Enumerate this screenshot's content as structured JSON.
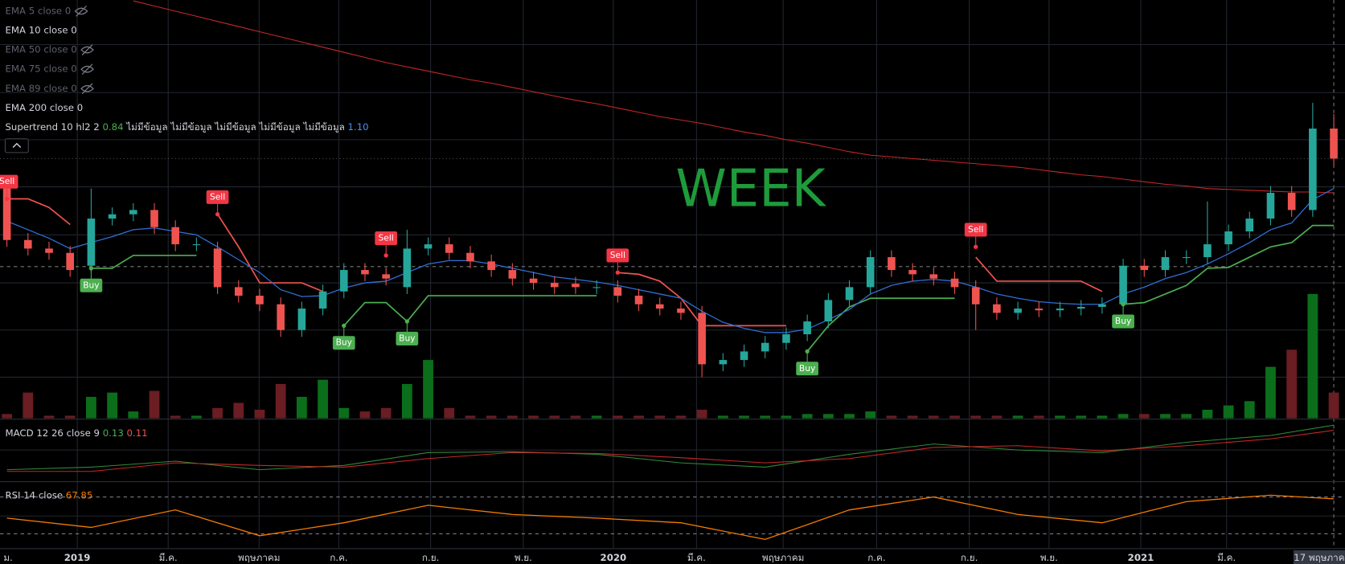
{
  "legend": {
    "ema": [
      {
        "text": "EMA 5 close 0",
        "hidden": true
      },
      {
        "text": "EMA 10 close 0",
        "hidden": false
      },
      {
        "text": "EMA 50 close 0",
        "hidden": true
      },
      {
        "text": "EMA 75 close 0",
        "hidden": true
      },
      {
        "text": "EMA 89 close 0",
        "hidden": true
      },
      {
        "text": "EMA 200 close 0",
        "hidden": false
      }
    ],
    "supertrend": {
      "name": "Supertrend 10 hl2 2",
      "values": [
        "0.84",
        "ไม่มีข้อมูล",
        "ไม่มีข้อมูล",
        "ไม่มีข้อมูล",
        "ไม่มีข้อมูล",
        "ไม่มีข้อมูล",
        "1.10"
      ]
    },
    "macd": {
      "name": "MACD 12 26 close 9",
      "values": [
        "0.13",
        "0.11"
      ]
    },
    "rsi": {
      "name": "RSI 14 close",
      "values": [
        "67.85"
      ]
    }
  },
  "watermark": "WEEK",
  "price_chart": {
    "ylim": [
      0,
      488
    ],
    "volume_ylim": [
      0,
      488
    ],
    "up_color": "#26a69a",
    "down_color": "#ef5350",
    "volume_up_color": "#0b6e1a",
    "volume_down_color": "#6a1d22",
    "candles": {
      "open": [
        273,
        208,
        198,
        193,
        178,
        233,
        238,
        243,
        223,
        203,
        198,
        153,
        143,
        133,
        103,
        128,
        148,
        173,
        168,
        153,
        198,
        203,
        193,
        183,
        173,
        163,
        158,
        157,
        153,
        153,
        143,
        133,
        128,
        123,
        63,
        68,
        78,
        88,
        98,
        113,
        138,
        153,
        188,
        173,
        168,
        163,
        153,
        133,
        123,
        128,
        126,
        128,
        130,
        133,
        178,
        173,
        188,
        188,
        203,
        218,
        233,
        263,
        243,
        338
      ],
      "high": [
        281,
        216,
        206,
        201,
        268,
        246,
        251,
        251,
        231,
        211,
        206,
        161,
        151,
        141,
        136,
        156,
        181,
        181,
        176,
        220,
        211,
        211,
        201,
        191,
        181,
        171,
        166,
        165,
        161,
        161,
        151,
        141,
        136,
        131,
        76,
        86,
        96,
        106,
        121,
        146,
        161,
        196,
        196,
        181,
        176,
        171,
        161,
        141,
        136,
        136,
        136,
        138,
        141,
        186,
        186,
        196,
        196,
        253,
        226,
        241,
        271,
        271,
        368,
        355
      ],
      "low": [
        200,
        190,
        185,
        165,
        170,
        225,
        230,
        215,
        195,
        195,
        145,
        135,
        125,
        95,
        95,
        120,
        140,
        160,
        155,
        145,
        190,
        185,
        175,
        165,
        155,
        150,
        145,
        145,
        145,
        135,
        125,
        120,
        115,
        48,
        55,
        60,
        70,
        80,
        90,
        105,
        130,
        145,
        165,
        160,
        155,
        145,
        103,
        115,
        115,
        118,
        118,
        120,
        122,
        125,
        165,
        165,
        180,
        180,
        195,
        210,
        225,
        235,
        235,
        295
      ],
      "close": [
        208,
        198,
        193,
        173,
        233,
        238,
        243,
        223,
        203,
        203,
        153,
        143,
        133,
        103,
        128,
        148,
        173,
        168,
        163,
        198,
        203,
        193,
        183,
        173,
        163,
        158,
        153,
        153,
        153,
        143,
        133,
        128,
        123,
        63,
        68,
        78,
        88,
        98,
        113,
        138,
        153,
        188,
        173,
        168,
        163,
        153,
        133,
        123,
        128,
        126,
        128,
        130,
        133,
        178,
        173,
        188,
        188,
        203,
        218,
        233,
        263,
        243,
        338,
        303
      ]
    },
    "volume": [
      5,
      30,
      3,
      3,
      25,
      30,
      8,
      32,
      3,
      3,
      12,
      18,
      10,
      40,
      25,
      45,
      12,
      8,
      12,
      40,
      68,
      12,
      3,
      3,
      3,
      3,
      3,
      3,
      3,
      3,
      3,
      3,
      3,
      10,
      3,
      3,
      3,
      3,
      5,
      5,
      5,
      8,
      3,
      3,
      3,
      3,
      3,
      3,
      3,
      3,
      3,
      3,
      3,
      5,
      5,
      5,
      5,
      10,
      15,
      20,
      60,
      80,
      145,
      30
    ],
    "ema10": {
      "color": "#2f6fd6",
      "values": [
        230,
        220,
        210,
        198,
        205,
        212,
        220,
        222,
        218,
        214,
        200,
        185,
        170,
        150,
        142,
        143,
        152,
        158,
        160,
        170,
        180,
        184,
        184,
        180,
        175,
        170,
        165,
        162,
        159,
        155,
        150,
        145,
        140,
        125,
        112,
        105,
        100,
        100,
        104,
        115,
        127,
        145,
        155,
        160,
        162,
        160,
        153,
        145,
        140,
        136,
        134,
        133,
        133,
        145,
        153,
        163,
        170,
        180,
        192,
        205,
        220,
        228,
        255,
        268
      ]
    },
    "ema200": {
      "color": "#c62828",
      "values": [
        null,
        null,
        null,
        null,
        null,
        null,
        487,
        481,
        475,
        469,
        463,
        457,
        451,
        445,
        439,
        433,
        427,
        421,
        415,
        410,
        405,
        400,
        395,
        391,
        386,
        381,
        376,
        371,
        367,
        362,
        357,
        352,
        348,
        344,
        339,
        334,
        330,
        325,
        321,
        316,
        311,
        307,
        305,
        303,
        301,
        299,
        297,
        295,
        293,
        290,
        287,
        284,
        282,
        279,
        276,
        273,
        271,
        268,
        267,
        266,
        265,
        264,
        264,
        263
      ]
    },
    "supertrend_up": {
      "color": "#4caf50",
      "values": [
        null,
        null,
        null,
        null,
        175,
        175,
        190,
        190,
        190,
        190,
        null,
        null,
        null,
        null,
        null,
        null,
        108,
        135,
        135,
        113,
        143,
        143,
        143,
        143,
        143,
        143,
        143,
        143,
        143,
        null,
        null,
        null,
        null,
        null,
        null,
        null,
        null,
        null,
        78,
        108,
        130,
        140,
        140,
        140,
        140,
        140,
        null,
        null,
        null,
        null,
        null,
        null,
        null,
        133,
        135,
        145,
        155,
        175,
        176,
        188,
        200,
        205,
        225,
        225
      ]
    },
    "supertrend_down": {
      "color": "#ef5350",
      "values": [
        256,
        256,
        246,
        226,
        null,
        null,
        null,
        null,
        null,
        null,
        238,
        200,
        158,
        158,
        158,
        148,
        null,
        null,
        null,
        null,
        null,
        null,
        null,
        null,
        null,
        null,
        null,
        null,
        null,
        170,
        168,
        160,
        140,
        108,
        108,
        108,
        108,
        108,
        null,
        null,
        null,
        null,
        null,
        null,
        null,
        null,
        188,
        160,
        160,
        160,
        160,
        160,
        148,
        null,
        null,
        null,
        null,
        null,
        null,
        null,
        null,
        null,
        null,
        null
      ]
    },
    "signals": [
      {
        "text": "Sell",
        "index": 0,
        "price": 256
      },
      {
        "text": "Buy",
        "index": 4,
        "price": 175
      },
      {
        "text": "Sell",
        "index": 10,
        "price": 238
      },
      {
        "text": "Buy",
        "index": 16,
        "price": 108
      },
      {
        "text": "Sell",
        "index": 18,
        "price": 190
      },
      {
        "text": "Buy",
        "index": 19,
        "price": 113
      },
      {
        "text": "Sell",
        "index": 29,
        "price": 170
      },
      {
        "text": "Buy",
        "index": 38,
        "price": 78
      },
      {
        "text": "Sell",
        "index": 46,
        "price": 200
      },
      {
        "text": "Buy",
        "index": 53,
        "price": 133
      }
    ]
  },
  "macd": {
    "ylim": [
      0,
      70
    ],
    "x": [
      0,
      4,
      8,
      12,
      16,
      20,
      24,
      28,
      32,
      36,
      40,
      44,
      48,
      52,
      56,
      60,
      63
    ],
    "macd": {
      "color": "#2e8b3a",
      "values": [
        12,
        15,
        22,
        12,
        17,
        32,
        33,
        30,
        20,
        15,
        30,
        42,
        35,
        32,
        44,
        52,
        64
      ]
    },
    "signal": {
      "color": "#c62828",
      "values": [
        10,
        10,
        20,
        17,
        15,
        25,
        32,
        31,
        26,
        20,
        25,
        38,
        40,
        34,
        40,
        48,
        58
      ]
    }
  },
  "rsi": {
    "ylim": [
      14,
      81
    ],
    "bands": [
      30,
      70
    ],
    "color": "#f57c00",
    "x": [
      0,
      4,
      8,
      12,
      16,
      20,
      24,
      28,
      32,
      36,
      40,
      44,
      48,
      52,
      56,
      60,
      63
    ],
    "values": [
      47,
      37,
      56,
      28,
      42,
      61,
      51,
      47,
      42,
      24,
      56,
      70,
      51,
      42,
      65,
      72,
      68
    ]
  },
  "x_axis_labels": [
    "ม.",
    "2019",
    "มี.ค.",
    "พฤษภาคม",
    "ก.ค.",
    "ก.ย.",
    "พ.ย.",
    "2020",
    "มี.ค.",
    "พฤษภาคม",
    "ก.ค.",
    "ก.ย.",
    "พ.ย.",
    "2021",
    "มี.ค.",
    "17 พฤษภาค"
  ]
}
